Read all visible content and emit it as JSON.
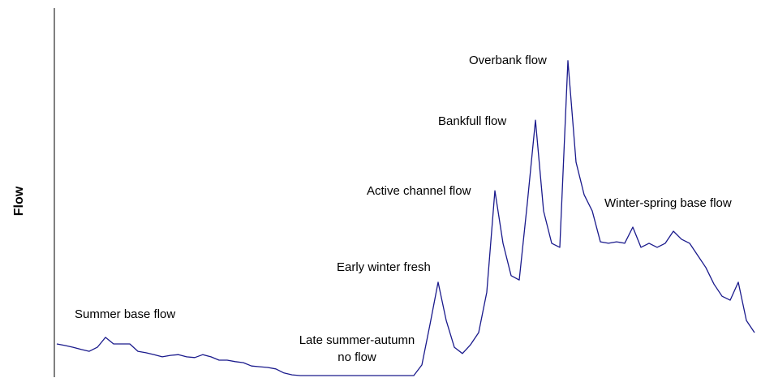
{
  "chart_data": {
    "type": "line",
    "ylabel": "Flow",
    "ylim": [
      0,
      100
    ],
    "color": "#1a1a8c",
    "values": [
      8.6,
      8.2,
      7.7,
      7.1,
      6.6,
      7.7,
      10.4,
      8.6,
      8.6,
      8.6,
      6.6,
      6.2,
      5.7,
      5.1,
      5.5,
      5.7,
      5.1,
      4.9,
      5.7,
      5.1,
      4.2,
      4.2,
      3.8,
      3.5,
      2.6,
      2.4,
      2.2,
      1.8,
      0.7,
      0.2,
      0,
      0,
      0,
      0,
      0,
      0,
      0,
      0,
      0,
      0,
      0,
      0,
      0,
      0,
      0,
      2.9,
      13.9,
      25.4,
      15.0,
      7.7,
      6.0,
      8.4,
      11.7,
      22.7,
      50.3,
      36.0,
      27.2,
      26.0,
      47.0,
      69.5,
      44.8,
      36.0,
      34.9,
      85.7,
      58.1,
      49.2,
      44.8,
      36.4,
      36.0,
      36.4,
      36.0,
      40.4,
      34.9,
      36.0,
      34.9,
      36.0,
      39.3,
      37.1,
      36.0,
      32.7,
      29.4,
      24.9,
      21.6,
      20.5,
      25.4,
      15.0,
      11.7
    ],
    "annotations": [
      [
        "Summer base flow"
      ],
      [
        "Late summer-autumn",
        "no flow"
      ],
      [
        "Early winter fresh"
      ],
      [
        "Active channel flow"
      ],
      [
        "Bankfull flow"
      ],
      [
        "Overbank flow"
      ],
      [
        "Winter-spring base flow"
      ]
    ]
  }
}
